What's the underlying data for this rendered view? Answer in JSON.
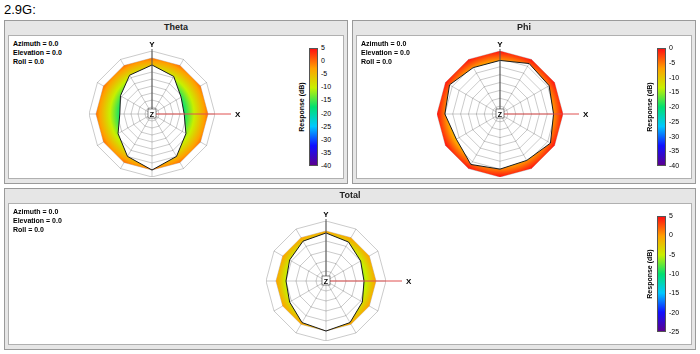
{
  "title": "2.9G:",
  "chart_data": [
    {
      "type": "radar",
      "title": "Theta",
      "view_labels": [
        "Azimuth = 0.0",
        "Elevation = 0.0",
        "Roll = 0.0"
      ],
      "axis_labels": [
        "X",
        "Y",
        "Z"
      ],
      "angles": [
        0,
        30,
        60,
        90,
        120,
        150,
        180,
        210,
        240,
        270,
        300,
        330
      ],
      "values": [
        -5,
        -9,
        -16,
        -17,
        -12,
        -5,
        0,
        -5,
        -12,
        -17,
        -14,
        -8
      ],
      "colorbar": {
        "label": "Response (dB)",
        "range": [
          -40,
          5
        ],
        "ticks": [
          5,
          0,
          -5,
          -10,
          -15,
          -20,
          -25,
          -30,
          -35,
          -40
        ]
      },
      "grid": true,
      "tick_labels": false
    },
    {
      "type": "radar",
      "title": "Phi",
      "view_labels": [
        "Azimuth = 0.0",
        "Elevation = 0.0",
        "Roll = 0.0"
      ],
      "axis_labels": [
        "X",
        "Y",
        "Z"
      ],
      "angles": [
        0,
        30,
        60,
        90,
        120,
        150,
        180,
        210,
        240,
        270,
        300,
        330
      ],
      "values": [
        -6,
        -3,
        -4,
        -6,
        -3,
        -6,
        -5,
        -3,
        -8,
        -5,
        -3,
        -6
      ],
      "colorbar": {
        "label": "Response (dB)",
        "range": [
          -40,
          0
        ],
        "ticks": [
          0,
          -5,
          -10,
          -15,
          -20,
          -25,
          -30,
          -35,
          -40
        ]
      },
      "grid": true,
      "tick_labels": false
    },
    {
      "type": "radar",
      "title": "Total",
      "view_labels": [
        "Azimuth = 0.0",
        "Elevation = 0.0",
        "Roll = 0.0"
      ],
      "axis_labels": [
        "X",
        "Y",
        "Z"
      ],
      "angles": [
        0,
        30,
        60,
        90,
        120,
        150,
        180,
        210,
        240,
        270,
        300,
        330
      ],
      "values": [
        -1,
        -2.5,
        -5,
        -6,
        -4,
        -1,
        0,
        -1,
        -4,
        -5,
        -4,
        -2
      ],
      "colorbar": {
        "label": "Response (dB)",
        "range": [
          -25,
          5
        ],
        "ticks": [
          5,
          0,
          -5,
          -10,
          -15,
          -20,
          -25
        ]
      },
      "grid": true,
      "tick_labels": false
    }
  ]
}
